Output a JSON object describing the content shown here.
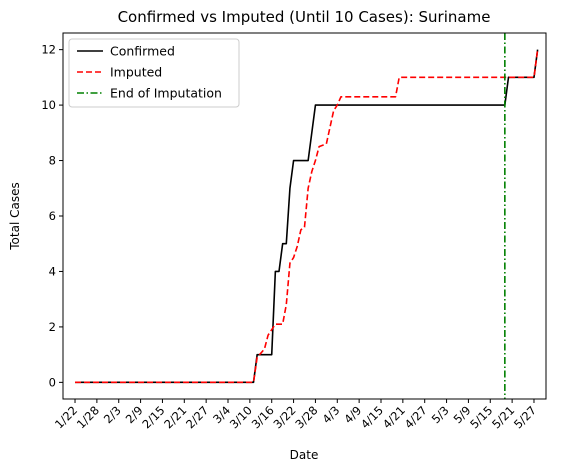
{
  "chart_data": {
    "type": "line",
    "title": "Confirmed vs Imputed (Until 10 Cases): Suriname",
    "xlabel": "Date",
    "ylabel": "Total Cases",
    "x_tick_labels": [
      "1/22",
      "1/28",
      "2/3",
      "2/9",
      "2/15",
      "2/21",
      "2/27",
      "3/4",
      "3/10",
      "3/16",
      "3/22",
      "3/28",
      "4/3",
      "4/9",
      "4/15",
      "4/21",
      "4/27",
      "5/3",
      "5/9",
      "5/15",
      "5/21",
      "5/27"
    ],
    "y_ticks": [
      0,
      2,
      4,
      6,
      8,
      10,
      12
    ],
    "xlim_days": [
      -3.3,
      129.3
    ],
    "ylim": [
      -0.6,
      12.6
    ],
    "legend_position": "top-left",
    "series": [
      {
        "name": "Confirmed",
        "color": "#000000",
        "style": "solid",
        "points": [
          [
            0,
            0
          ],
          [
            49,
            0
          ],
          [
            50,
            1
          ],
          [
            54,
            1
          ],
          [
            55,
            4
          ],
          [
            56,
            4
          ],
          [
            57,
            5
          ],
          [
            58,
            5
          ],
          [
            59,
            7
          ],
          [
            60,
            8
          ],
          [
            64,
            8
          ],
          [
            65,
            9
          ],
          [
            66,
            10
          ],
          [
            118,
            10
          ],
          [
            119,
            11
          ],
          [
            126,
            11
          ],
          [
            127,
            12
          ]
        ]
      },
      {
        "name": "Imputed",
        "color": "#ff0000",
        "style": "dashed",
        "points": [
          [
            0,
            0
          ],
          [
            49,
            0
          ],
          [
            50,
            0.9
          ],
          [
            52,
            1.2
          ],
          [
            53,
            1.7
          ],
          [
            54,
            1.9
          ],
          [
            55,
            2.1
          ],
          [
            57,
            2.1
          ],
          [
            58,
            2.8
          ],
          [
            59,
            4.3
          ],
          [
            60,
            4.5
          ],
          [
            61,
            4.9
          ],
          [
            62,
            5.5
          ],
          [
            63,
            5.6
          ],
          [
            64,
            7.0
          ],
          [
            65,
            7.6
          ],
          [
            66,
            8.0
          ],
          [
            67,
            8.5
          ],
          [
            69,
            8.6
          ],
          [
            70,
            9.2
          ],
          [
            71,
            9.8
          ],
          [
            72,
            10.0
          ],
          [
            73,
            10.3
          ],
          [
            88,
            10.3
          ],
          [
            89,
            11.0
          ],
          [
            126,
            11.0
          ],
          [
            127,
            12
          ]
        ]
      }
    ],
    "vertical_line": {
      "name": "End of Imputation",
      "x": 118,
      "color": "#008000",
      "style": "dashdot"
    }
  }
}
